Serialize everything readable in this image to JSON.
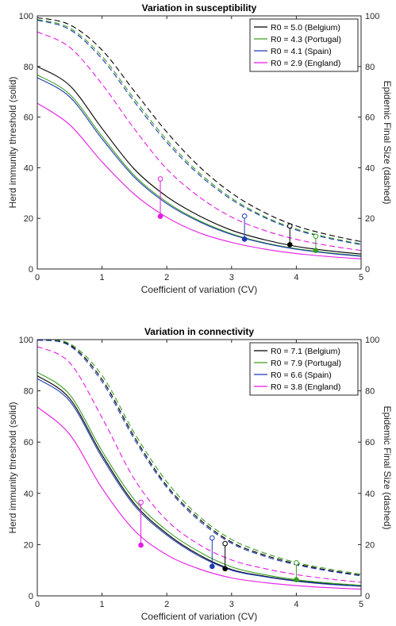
{
  "chart_data": [
    {
      "type": "line",
      "title": "Variation in susceptibility",
      "xlabel": "Coefficient of variation (CV)",
      "ylabel": "Herd immunity threshold (solid)",
      "y2label": "Epidemic Final Size (dashed)",
      "xlim": [
        0,
        5
      ],
      "ylim": [
        0,
        100
      ],
      "xticks": [
        "0",
        "1",
        "2",
        "3",
        "4",
        "5"
      ],
      "yticks": [
        "0",
        "20",
        "40",
        "60",
        "80",
        "100"
      ],
      "legend_position": "top-right",
      "series": [
        {
          "name": "R0 = 5.0 (Belgium)",
          "R0": 5.0,
          "color": "#000000",
          "x": [
            0,
            0.5,
            1,
            1.5,
            2,
            2.5,
            3,
            3.5,
            4,
            4.5,
            5
          ],
          "herd_immunity": [
            80.0,
            72.5,
            55.5,
            39.4,
            28.6,
            21.0,
            15.3,
            11.6,
            8.9,
            7.2,
            5.9
          ],
          "final_size": [
            99.3,
            96.5,
            86.5,
            70.2,
            54.1,
            40.5,
            30.0,
            22.4,
            17.0,
            13.5,
            10.8
          ],
          "marker_cv": 3.9,
          "marker_herd": 9.6,
          "marker_final": 17.0
        },
        {
          "name": "R0 = 4.3 (Portugal)",
          "R0": 4.3,
          "color": "#3a9d23",
          "x": [
            0,
            0.5,
            1,
            1.5,
            2,
            2.5,
            3,
            3.5,
            4,
            4.5,
            5
          ],
          "herd_immunity": [
            76.7,
            69.0,
            52.4,
            36.9,
            26.4,
            19.1,
            13.9,
            10.4,
            8.0,
            6.4,
            5.2
          ],
          "final_size": [
            98.6,
            95.2,
            84.0,
            67.1,
            51.0,
            38.0,
            28.0,
            20.8,
            15.8,
            12.4,
            9.9
          ],
          "marker_cv": 4.3,
          "marker_herd": 7.3,
          "marker_final": 12.9
        },
        {
          "name": "R0 = 4.1 (Spain)",
          "R0": 4.1,
          "color": "#1f3bb3",
          "x": [
            0,
            0.5,
            1,
            1.5,
            2,
            2.5,
            3,
            3.5,
            4,
            4.5,
            5
          ],
          "herd_immunity": [
            75.6,
            68.0,
            51.4,
            36.2,
            25.8,
            18.7,
            13.6,
            10.2,
            7.8,
            6.2,
            5.0
          ],
          "final_size": [
            98.3,
            94.6,
            83.0,
            66.0,
            50.0,
            37.2,
            27.4,
            20.4,
            15.4,
            12.1,
            9.6
          ],
          "marker_cv": 3.2,
          "marker_herd": 11.8,
          "marker_final": 20.9
        },
        {
          "name": "R0 = 2.9 (England)",
          "R0": 2.9,
          "color": "#e619e6",
          "x": [
            0,
            0.5,
            1,
            1.5,
            2,
            2.5,
            3,
            3.5,
            4,
            4.5,
            5
          ],
          "herd_immunity": [
            65.5,
            57.0,
            42.3,
            29.5,
            20.4,
            14.3,
            10.5,
            7.9,
            6.1,
            4.9,
            4.0
          ],
          "final_size": [
            93.7,
            87.6,
            73.0,
            55.3,
            39.5,
            28.5,
            20.5,
            15.3,
            11.7,
            9.2,
            7.3
          ],
          "marker_cv": 1.9,
          "marker_herd": 20.8,
          "marker_final": 35.6
        }
      ]
    },
    {
      "type": "line",
      "title": "Variation in connectivity",
      "xlabel": "Coefficient of variation (CV)",
      "ylabel": "Herd immunity threshold (solid)",
      "y2label": "Epidemic Final Size (dashed)",
      "xlim": [
        0,
        5
      ],
      "ylim": [
        0,
        100
      ],
      "xticks": [
        "0",
        "1",
        "2",
        "3",
        "4",
        "5"
      ],
      "yticks": [
        "0",
        "20",
        "40",
        "60",
        "80",
        "100"
      ],
      "legend_position": "top-right",
      "series": [
        {
          "name": "R0 = 7.1 (Belgium)",
          "R0": 7.1,
          "color": "#000000",
          "x": [
            0,
            0.5,
            1,
            1.5,
            2,
            2.5,
            3,
            3.5,
            4,
            4.5,
            5
          ],
          "herd_immunity": [
            85.9,
            77.0,
            55.0,
            36.0,
            24.3,
            16.0,
            10.3,
            7.7,
            5.9,
            4.7,
            3.8
          ],
          "final_size": [
            99.9,
            98.0,
            84.5,
            62.0,
            43.0,
            30.0,
            21.0,
            16.0,
            12.5,
            10.0,
            8.0
          ],
          "marker_cv": 2.9,
          "marker_herd": 10.6,
          "marker_final": 20.4
        },
        {
          "name": "R0 = 7.9 (Portugal)",
          "R0": 7.9,
          "color": "#3a9d23",
          "x": [
            0,
            0.5,
            1,
            1.5,
            2,
            2.5,
            3,
            3.5,
            4,
            4.5,
            5
          ],
          "herd_immunity": [
            87.3,
            78.5,
            56.5,
            37.5,
            25.5,
            17.2,
            11.3,
            8.3,
            6.3,
            5.0,
            4.1
          ],
          "final_size": [
            99.9,
            98.4,
            86.0,
            63.5,
            44.5,
            31.0,
            22.0,
            16.8,
            13.0,
            10.5,
            8.4
          ],
          "marker_cv": 4.0,
          "marker_herd": 6.3,
          "marker_final": 12.9
        },
        {
          "name": "R0 = 6.6 (Spain)",
          "R0": 6.6,
          "color": "#1f3bb3",
          "x": [
            0,
            0.5,
            1,
            1.5,
            2,
            2.5,
            3,
            3.5,
            4,
            4.5,
            5
          ],
          "herd_immunity": [
            84.8,
            76.0,
            54.0,
            35.2,
            23.7,
            15.5,
            10.0,
            7.5,
            5.7,
            4.5,
            3.7
          ],
          "final_size": [
            99.8,
            97.6,
            83.5,
            61.0,
            42.3,
            29.3,
            20.5,
            15.5,
            12.1,
            9.7,
            7.8
          ],
          "marker_cv": 2.7,
          "marker_herd": 11.5,
          "marker_final": 22.6
        },
        {
          "name": "R0 = 3.8 (England)",
          "R0": 3.8,
          "color": "#e619e6",
          "x": [
            0,
            0.5,
            1,
            1.5,
            2,
            2.5,
            3,
            3.5,
            4,
            4.5,
            5
          ],
          "herd_immunity": [
            73.7,
            63.0,
            42.0,
            25.5,
            16.0,
            10.5,
            7.0,
            5.2,
            4.0,
            3.2,
            2.6
          ],
          "final_size": [
            97.3,
            91.0,
            69.5,
            45.5,
            29.5,
            20.0,
            14.0,
            10.7,
            8.3,
            6.6,
            5.3
          ],
          "marker_cv": 1.6,
          "marker_herd": 19.8,
          "marker_final": 36.5
        }
      ]
    }
  ]
}
